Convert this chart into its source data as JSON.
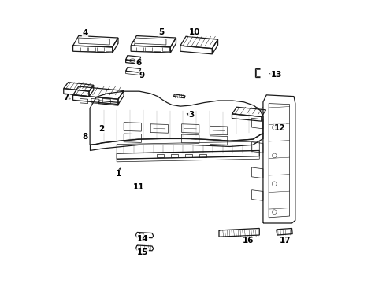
{
  "background_color": "#ffffff",
  "line_color": "#1a1a1a",
  "lw_main": 0.9,
  "lw_thin": 0.5,
  "lw_rib": 0.35,
  "fig_width": 4.9,
  "fig_height": 3.6,
  "dpi": 100,
  "label_positions": {
    "1": [
      0.235,
      0.385,
      0.245,
      0.415
    ],
    "2": [
      0.175,
      0.545,
      0.19,
      0.565
    ],
    "3": [
      0.495,
      0.595,
      0.468,
      0.6
    ],
    "4": [
      0.118,
      0.885,
      0.135,
      0.868
    ],
    "5": [
      0.388,
      0.888,
      0.375,
      0.872
    ],
    "6": [
      0.308,
      0.778,
      0.322,
      0.77
    ],
    "7": [
      0.052,
      0.655,
      0.075,
      0.648
    ],
    "8": [
      0.118,
      0.518,
      0.132,
      0.535
    ],
    "9": [
      0.318,
      0.735,
      0.332,
      0.722
    ],
    "10": [
      0.505,
      0.888,
      0.492,
      0.873
    ],
    "11": [
      0.308,
      0.338,
      0.325,
      0.352
    ],
    "12": [
      0.808,
      0.548,
      0.778,
      0.555
    ],
    "13": [
      0.795,
      0.738,
      0.762,
      0.742
    ],
    "14": [
      0.322,
      0.155,
      0.342,
      0.168
    ],
    "15": [
      0.322,
      0.108,
      0.342,
      0.122
    ],
    "16": [
      0.695,
      0.148,
      0.695,
      0.165
    ],
    "17": [
      0.828,
      0.148,
      0.828,
      0.165
    ]
  }
}
